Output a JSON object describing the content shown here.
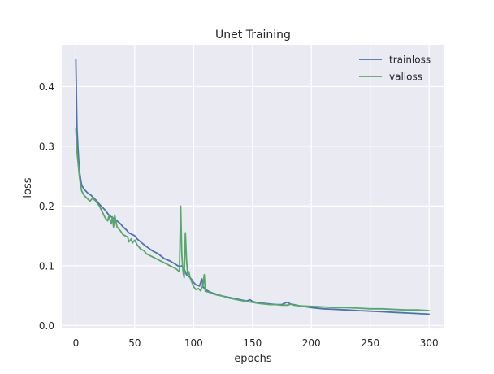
{
  "chart_data": {
    "type": "line",
    "title": "Unet Training",
    "xlabel": "epochs",
    "ylabel": "loss",
    "xlim": [
      -12,
      313
    ],
    "ylim": [
      -0.005,
      0.47
    ],
    "xticks": [
      0,
      50,
      100,
      150,
      200,
      250,
      300
    ],
    "yticks": [
      0.0,
      0.1,
      0.2,
      0.3,
      0.4
    ],
    "ytick_labels": [
      "0.0",
      "0.1",
      "0.2",
      "0.3",
      "0.4"
    ],
    "grid": true,
    "legend_position": "top-right",
    "series": [
      {
        "name": "trainloss",
        "color": "#4c72b0",
        "x": [
          0,
          1,
          2,
          3,
          4,
          5,
          7,
          10,
          13,
          15,
          18,
          20,
          23,
          25,
          28,
          30,
          33,
          35,
          38,
          40,
          43,
          45,
          48,
          50,
          52,
          55,
          58,
          60,
          65,
          70,
          75,
          80,
          85,
          88,
          90,
          92,
          94,
          96,
          98,
          100,
          102,
          105,
          107,
          108,
          110,
          113,
          115,
          120,
          125,
          130,
          135,
          140,
          145,
          148,
          150,
          155,
          160,
          165,
          170,
          175,
          178,
          180,
          182,
          185,
          190,
          200,
          210,
          220,
          230,
          240,
          250,
          260,
          270,
          280,
          290,
          300
        ],
        "y": [
          0.445,
          0.33,
          0.29,
          0.26,
          0.245,
          0.235,
          0.228,
          0.222,
          0.218,
          0.214,
          0.208,
          0.203,
          0.197,
          0.193,
          0.185,
          0.182,
          0.178,
          0.175,
          0.17,
          0.165,
          0.16,
          0.155,
          0.152,
          0.15,
          0.145,
          0.14,
          0.135,
          0.132,
          0.125,
          0.12,
          0.112,
          0.108,
          0.102,
          0.098,
          0.1,
          0.095,
          0.085,
          0.082,
          0.078,
          0.072,
          0.068,
          0.066,
          0.078,
          0.065,
          0.06,
          0.057,
          0.055,
          0.052,
          0.049,
          0.047,
          0.045,
          0.043,
          0.041,
          0.043,
          0.04,
          0.038,
          0.037,
          0.036,
          0.035,
          0.035,
          0.038,
          0.039,
          0.036,
          0.035,
          0.033,
          0.03,
          0.028,
          0.027,
          0.026,
          0.025,
          0.024,
          0.023,
          0.022,
          0.021,
          0.02,
          0.019
        ]
      },
      {
        "name": "valloss",
        "color": "#55a868",
        "x": [
          0,
          1,
          2,
          3,
          4,
          5,
          7,
          10,
          12,
          14,
          16,
          18,
          20,
          22,
          25,
          27,
          28,
          30,
          31,
          32,
          33,
          35,
          38,
          40,
          42,
          44,
          45,
          47,
          48,
          50,
          52,
          55,
          58,
          60,
          65,
          70,
          75,
          80,
          85,
          88,
          89,
          90,
          91,
          92,
          93,
          94,
          95,
          96,
          97,
          98,
          100,
          102,
          104,
          106,
          108,
          109,
          110,
          113,
          115,
          120,
          125,
          130,
          135,
          140,
          145,
          150,
          155,
          160,
          165,
          170,
          175,
          180,
          183,
          185,
          190,
          200,
          210,
          220,
          230,
          240,
          250,
          260,
          270,
          280,
          290,
          300
        ],
        "y": [
          0.33,
          0.29,
          0.27,
          0.25,
          0.235,
          0.225,
          0.218,
          0.212,
          0.208,
          0.213,
          0.21,
          0.205,
          0.2,
          0.192,
          0.18,
          0.175,
          0.183,
          0.17,
          0.182,
          0.165,
          0.185,
          0.165,
          0.158,
          0.152,
          0.15,
          0.148,
          0.14,
          0.145,
          0.138,
          0.143,
          0.135,
          0.128,
          0.125,
          0.12,
          0.115,
          0.11,
          0.105,
          0.1,
          0.095,
          0.09,
          0.2,
          0.12,
          0.09,
          0.08,
          0.155,
          0.11,
          0.085,
          0.09,
          0.08,
          0.075,
          0.065,
          0.06,
          0.062,
          0.058,
          0.068,
          0.085,
          0.057,
          0.056,
          0.054,
          0.051,
          0.049,
          0.046,
          0.044,
          0.042,
          0.04,
          0.039,
          0.037,
          0.036,
          0.035,
          0.035,
          0.034,
          0.034,
          0.036,
          0.034,
          0.033,
          0.032,
          0.031,
          0.03,
          0.03,
          0.029,
          0.028,
          0.028,
          0.027,
          0.026,
          0.026,
          0.025
        ]
      }
    ]
  }
}
